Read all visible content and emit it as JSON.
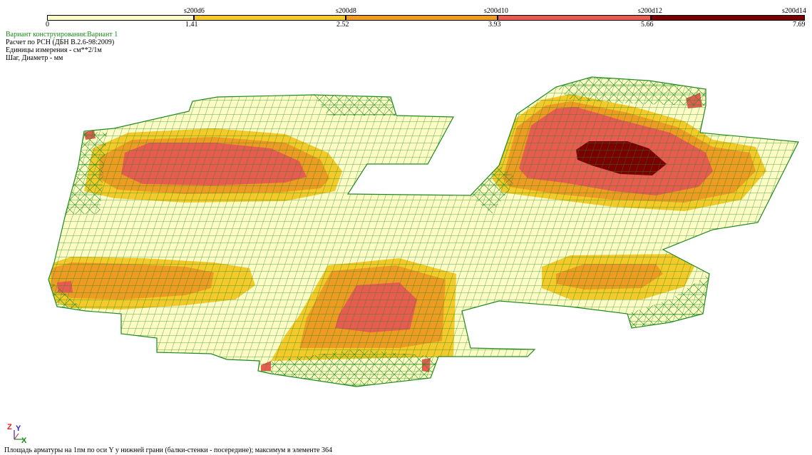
{
  "legend": {
    "bars": [
      {
        "from": "0",
        "to": "1.41",
        "reinforcement": "s200d6",
        "color": "#fdfcc6"
      },
      {
        "from": "1.41",
        "to": "2.52",
        "reinforcement": "s200d8",
        "color": "#f4c92a"
      },
      {
        "from": "2.52",
        "to": "3.93",
        "reinforcement": "s200d10",
        "color": "#ee9b23"
      },
      {
        "from": "3.93",
        "to": "5.66",
        "reinforcement": "s200d12",
        "color": "#e85b50"
      },
      {
        "from": "5.66",
        "to": "7.69",
        "reinforcement": "s200d14",
        "color": "#7a0000"
      }
    ],
    "labels": {
      "v0": "0",
      "v1": "1.41",
      "v2": "2.52",
      "v3": "3.93",
      "v4": "5.66",
      "v5": "7.69",
      "r1": "s200d6",
      "r2": "s200d8",
      "r3": "s200d10",
      "r4": "s200d12",
      "r5": "s200d14"
    }
  },
  "info": {
    "variant": "Вариант конструирования:Вариант 1",
    "calc": "Расчет по РСН (ДБН В.2.6-98:2009)",
    "units": "Единицы измерения - см**2/1м",
    "step": "Шаг, Диаметр - мм"
  },
  "axes": {
    "z": "Z",
    "y": "Y",
    "x": "X"
  },
  "caption": "Площадь арматуры на 1пм по оси Y у нижней грани (балки-стенки - посередине); максимум в элементе 364",
  "colors": {
    "mesh": "#1f8a1f",
    "base": "#fdfcc6",
    "yellow": "#f4c92a",
    "orange": "#ee9b23",
    "red": "#e85b50",
    "dark": "#7a0000"
  }
}
